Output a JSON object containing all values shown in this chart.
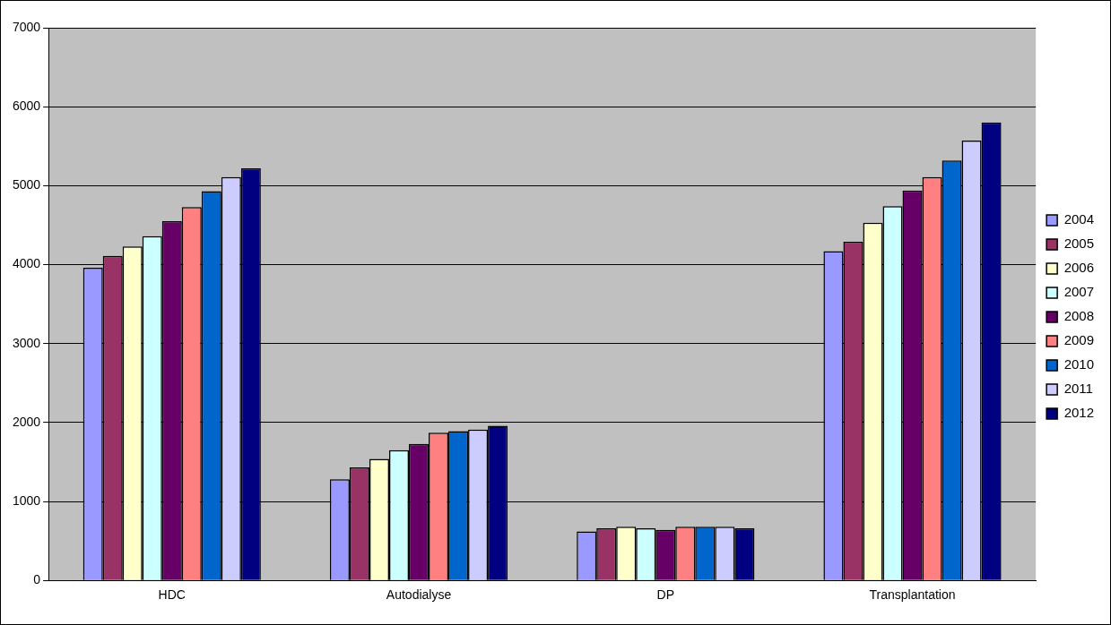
{
  "chart_data": {
    "type": "bar",
    "categories": [
      "HDC",
      "Autodialyse",
      "DP",
      "Transplantation"
    ],
    "series": [
      {
        "name": "2004",
        "color": "#9999ff",
        "values": [
          3960,
          1280,
          620,
          4170
        ]
      },
      {
        "name": "2005",
        "color": "#993366",
        "values": [
          4110,
          1430,
          660,
          4290
        ]
      },
      {
        "name": "2006",
        "color": "#ffffcc",
        "values": [
          4230,
          1540,
          680,
          4530
        ]
      },
      {
        "name": "2007",
        "color": "#ccffff",
        "values": [
          4360,
          1650,
          660,
          4740
        ]
      },
      {
        "name": "2008",
        "color": "#660066",
        "values": [
          4550,
          1730,
          640,
          4940
        ]
      },
      {
        "name": "2009",
        "color": "#ff8080",
        "values": [
          4730,
          1870,
          680,
          5110
        ]
      },
      {
        "name": "2010",
        "color": "#0066cc",
        "values": [
          4930,
          1890,
          680,
          5320
        ]
      },
      {
        "name": "2011",
        "color": "#ccccff",
        "values": [
          5110,
          1910,
          680,
          5570
        ]
      },
      {
        "name": "2012",
        "color": "#000080",
        "values": [
          5220,
          1960,
          660,
          5800
        ]
      }
    ],
    "ylim": [
      0,
      7000
    ],
    "yticks": [
      0,
      1000,
      2000,
      3000,
      4000,
      5000,
      6000,
      7000
    ],
    "grid": "y",
    "legend": "right"
  }
}
